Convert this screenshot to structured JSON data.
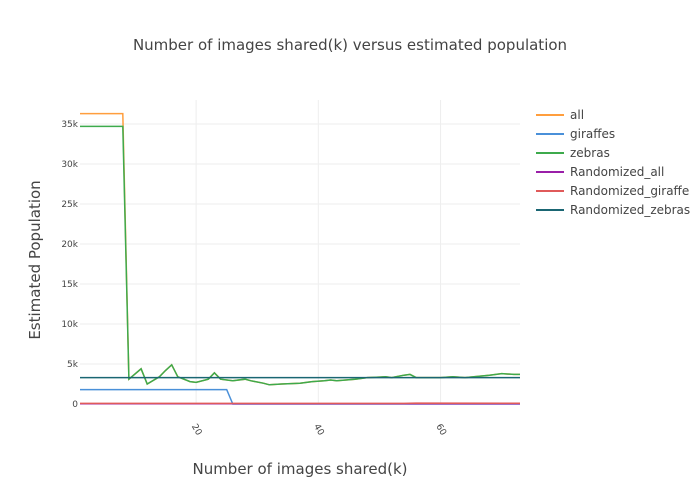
{
  "chart_data": {
    "type": "line",
    "title": "Number of images shared(k) versus estimated population",
    "xlabel": "Number of images shared(k)",
    "ylabel": "Estimated Population",
    "xlim": [
      1,
      73
    ],
    "ylim": [
      0,
      38000
    ],
    "x_ticks": [
      20,
      40,
      60
    ],
    "x_tick_labels": [
      "20",
      "40",
      "60"
    ],
    "y_ticks": [
      0,
      5000,
      10000,
      15000,
      20000,
      25000,
      30000,
      35000
    ],
    "y_tick_labels": [
      "0",
      "5k",
      "10k",
      "15k",
      "20k",
      "25k",
      "30k",
      "35k"
    ],
    "grid": true,
    "legend_position": "right",
    "series": [
      {
        "name": "all",
        "color": "#ff9e3d",
        "points": [
          [
            1,
            36300
          ],
          [
            7,
            36300
          ],
          [
            8,
            36300
          ],
          [
            9,
            3100
          ],
          [
            11,
            4400
          ],
          [
            12,
            2500
          ],
          [
            14,
            3400
          ],
          [
            15,
            4200
          ],
          [
            16,
            4900
          ],
          [
            17,
            3400
          ],
          [
            19,
            2800
          ],
          [
            20,
            2700
          ],
          [
            22,
            3100
          ],
          [
            23,
            3900
          ],
          [
            24,
            3100
          ],
          [
            26,
            2900
          ],
          [
            28,
            3100
          ],
          [
            29,
            2900
          ],
          [
            31,
            2600
          ],
          [
            32,
            2400
          ],
          [
            34,
            2500
          ],
          [
            37,
            2600
          ],
          [
            39,
            2800
          ],
          [
            41,
            2900
          ],
          [
            42,
            3000
          ],
          [
            43,
            2900
          ],
          [
            46,
            3100
          ],
          [
            48,
            3300
          ],
          [
            51,
            3400
          ],
          [
            52,
            3300
          ],
          [
            54,
            3600
          ],
          [
            55,
            3700
          ],
          [
            56,
            3300
          ],
          [
            57,
            3300
          ],
          [
            60,
            3300
          ],
          [
            62,
            3400
          ],
          [
            64,
            3300
          ],
          [
            68,
            3600
          ],
          [
            70,
            3800
          ],
          [
            72,
            3700
          ],
          [
            73,
            3700
          ]
        ]
      },
      {
        "name": "giraffes",
        "color": "#4a90d9",
        "points": [
          [
            1,
            1800
          ],
          [
            25,
            1800
          ],
          [
            26,
            0
          ],
          [
            73,
            0
          ]
        ]
      },
      {
        "name": "zebras",
        "color": "#3daa4c",
        "points": [
          [
            1,
            34700
          ],
          [
            7,
            34700
          ],
          [
            8,
            34700
          ],
          [
            9,
            3100
          ],
          [
            11,
            4400
          ],
          [
            12,
            2500
          ],
          [
            14,
            3400
          ],
          [
            15,
            4200
          ],
          [
            16,
            4900
          ],
          [
            17,
            3400
          ],
          [
            19,
            2800
          ],
          [
            20,
            2700
          ],
          [
            22,
            3100
          ],
          [
            23,
            3900
          ],
          [
            24,
            3100
          ],
          [
            26,
            2900
          ],
          [
            28,
            3100
          ],
          [
            29,
            2900
          ],
          [
            31,
            2600
          ],
          [
            32,
            2400
          ],
          [
            34,
            2500
          ],
          [
            37,
            2600
          ],
          [
            39,
            2800
          ],
          [
            41,
            2900
          ],
          [
            42,
            3000
          ],
          [
            43,
            2900
          ],
          [
            46,
            3100
          ],
          [
            48,
            3300
          ],
          [
            51,
            3400
          ],
          [
            52,
            3300
          ],
          [
            54,
            3600
          ],
          [
            55,
            3700
          ],
          [
            56,
            3300
          ],
          [
            57,
            3300
          ],
          [
            60,
            3300
          ],
          [
            62,
            3400
          ],
          [
            64,
            3300
          ],
          [
            68,
            3600
          ],
          [
            70,
            3800
          ],
          [
            72,
            3700
          ],
          [
            73,
            3700
          ]
        ]
      },
      {
        "name": "Randomized_all",
        "color": "#9a1fa8",
        "points": [
          [
            1,
            40
          ],
          [
            73,
            40
          ]
        ]
      },
      {
        "name": "Randomized_giraffe",
        "color": "#e05a5a",
        "points": [
          [
            1,
            80
          ],
          [
            54,
            80
          ],
          [
            56,
            110
          ],
          [
            73,
            100
          ]
        ]
      },
      {
        "name": "Randomized_zebras",
        "color": "#1a6673",
        "points": [
          [
            1,
            3300
          ],
          [
            73,
            3300
          ]
        ]
      }
    ]
  }
}
